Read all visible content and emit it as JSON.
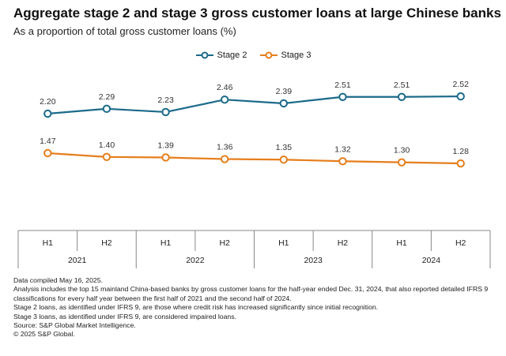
{
  "title": "Aggregate stage 2 and stage 3 gross customer loans at large Chinese banks",
  "subtitle": "As a proportion of total gross customer loans (%)",
  "colors": {
    "stage2": "#1b6a8a",
    "stage3": "#e67e1c",
    "axis": "#888888"
  },
  "chart_data": {
    "type": "line",
    "title": "Aggregate stage 2 and stage 3 gross customer loans at large Chinese banks",
    "subtitle": "As a proportion of total gross customer loans (%)",
    "categories": [
      "H1",
      "H2",
      "H1",
      "H2",
      "H1",
      "H2",
      "H1",
      "H2"
    ],
    "years": [
      "2021",
      "2022",
      "2023",
      "2024"
    ],
    "series": [
      {
        "name": "Stage 2",
        "values": [
          2.2,
          2.29,
          2.23,
          2.46,
          2.39,
          2.51,
          2.51,
          2.52
        ],
        "labels": [
          "2.20",
          "2.29",
          "2.23",
          "2.46",
          "2.39",
          "2.51",
          "2.51",
          "2.52"
        ]
      },
      {
        "name": "Stage 3",
        "values": [
          1.47,
          1.4,
          1.39,
          1.36,
          1.35,
          1.32,
          1.3,
          1.28
        ],
        "labels": [
          "1.47",
          "1.40",
          "1.39",
          "1.36",
          "1.35",
          "1.32",
          "1.30",
          "1.28"
        ]
      }
    ],
    "xlabel": "",
    "ylabel": "",
    "grid": false,
    "legend": "top-center"
  },
  "notes": [
    "Data compiled May 16, 2025.",
    "Analysis includes the top 15 mainland China-based banks by gross customer loans for the half-year ended Dec. 31, 2024, that also reported detailed IFRS 9 classifications for every half year between the first half of 2021 and the second half of 2024.",
    "Stage 2 loans, as identified under IFRS 9, are those where credit risk has increased significantly since initial recognition.",
    "Stage 3 loans, as identified under IFRS 9, are considered impaired loans.",
    "Source: S&P Global Market Intelligence.",
    "© 2025 S&P Global."
  ]
}
